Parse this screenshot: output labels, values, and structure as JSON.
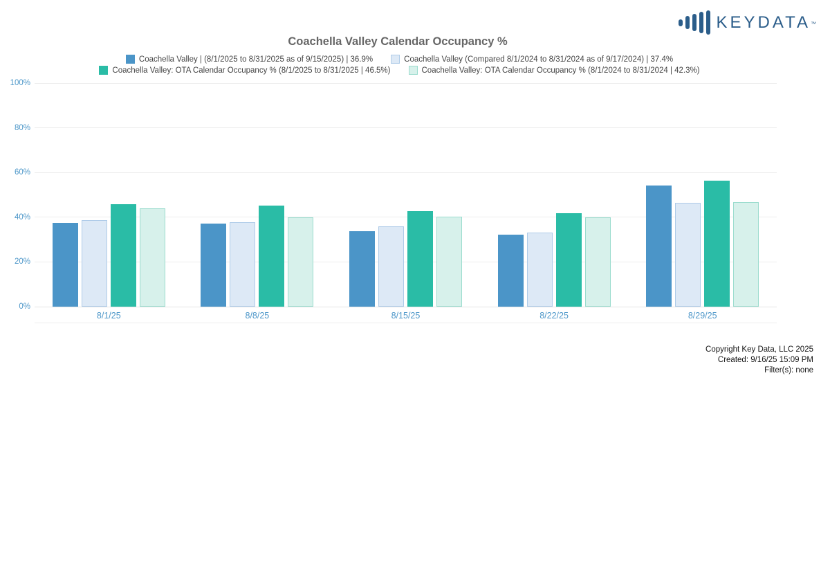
{
  "logo": {
    "text": "KEYDATA",
    "tm": "TM"
  },
  "chart_data": {
    "type": "bar",
    "title": "Coachella Valley Calendar Occupancy %",
    "categories": [
      "8/1/25",
      "8/8/25",
      "8/15/25",
      "8/22/25",
      "8/29/25"
    ],
    "series": [
      {
        "name": "Coachella Valley | (8/1/2025 to 8/31/2025 as of 9/15/2025) | 36.9%",
        "color": "#4b95c8",
        "values": [
          37.4,
          37.2,
          33.6,
          32.1,
          54.2
        ]
      },
      {
        "name": "Coachella Valley (Compared 8/1/2024 to 8/31/2024 as of 9/17/2024) | 37.4%",
        "color": "#dde9f6",
        "border": "#aecbe8",
        "values": [
          38.6,
          37.7,
          35.8,
          33.1,
          46.4
        ]
      },
      {
        "name": "Coachella Valley: OTA Calendar Occupancy % (8/1/2025 to 8/31/2025 | 46.5%)",
        "color": "#2abca6",
        "values": [
          45.7,
          45.2,
          42.7,
          41.7,
          56.2
        ]
      },
      {
        "name": "Coachella Valley: OTA Calendar Occupancy % (8/1/2024 to 8/31/2024 | 42.3%)",
        "color": "#d7f1eb",
        "border": "#9bdcce",
        "values": [
          44.1,
          39.8,
          40.1,
          39.9,
          46.8
        ]
      }
    ],
    "ylim": [
      0,
      100
    ],
    "yticks": [
      "0%",
      "20%",
      "40%",
      "60%",
      "80%",
      "100%"
    ],
    "grid": true,
    "legend_position": "top",
    "legend_rows": [
      [
        0,
        1
      ],
      [
        2,
        3
      ]
    ]
  },
  "footer": {
    "line1": "Copyright Key Data, LLC 2025",
    "line2": "Created: 9/16/25 15:09 PM",
    "line3": "Filter(s): none"
  }
}
